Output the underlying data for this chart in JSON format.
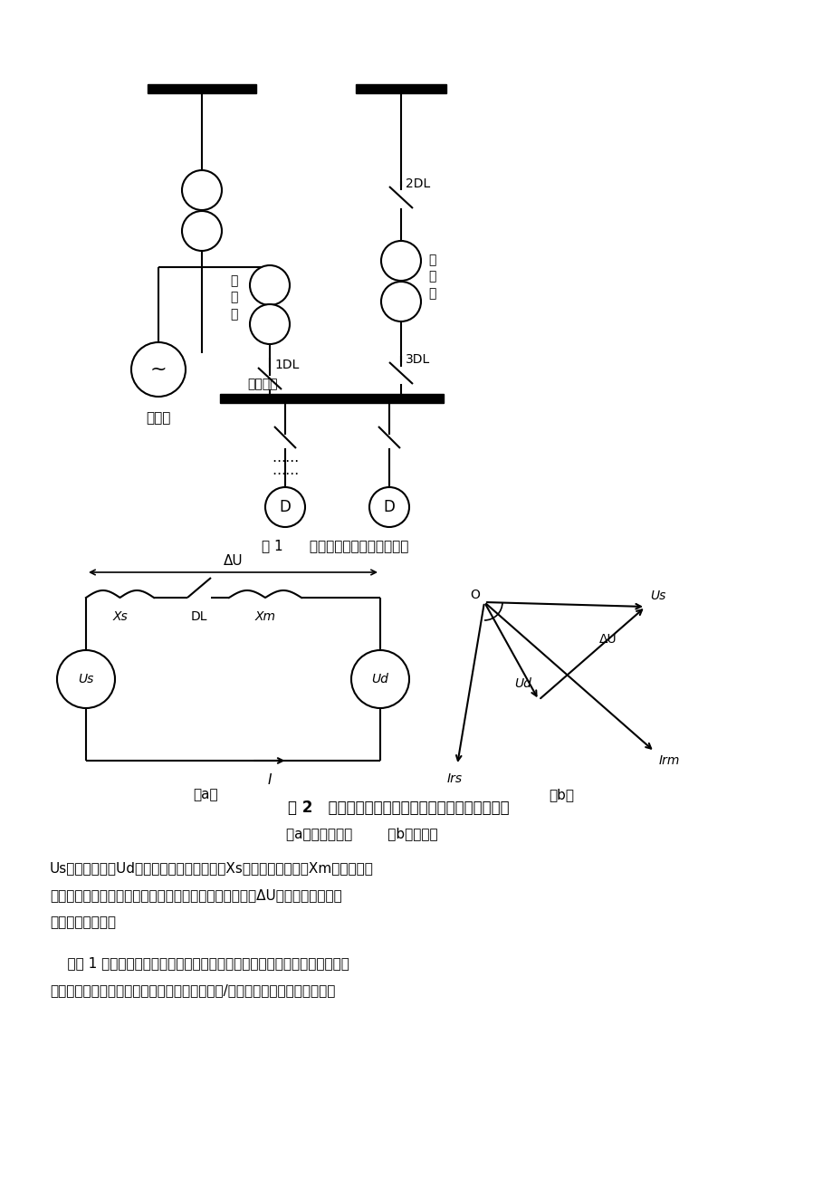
{
  "bg_color": "#ffffff",
  "fig1_caption": "图 1      厂用电系统的某一段接线图",
  "fig2_caption": "图 2   电动机重新接通电源时的等值电路图和相量图",
  "fig2_sub": "（a）等值电路图        （b）相量图",
  "fig2_desc1": "Us一电源电压；Ud一母线上电动机的残压；Xs一电源等值电抗；Xm一母线上电",
  "fig2_desc2": "动机组和低压负载的等值电抗（折算到高压厂用电压）；ΔU一电源电压与残压",
  "fig2_desc3": "之间的差拍电压。",
  "para1": "    由图 1 所示，正常运行时，厂用母线电源由发电机端经厂用高压工作变压器",
  "para2": "提供，备用电源由电厂高压母线或由系统经起动/备用变提供。当发电机组保护",
  "text_color": "#000000"
}
